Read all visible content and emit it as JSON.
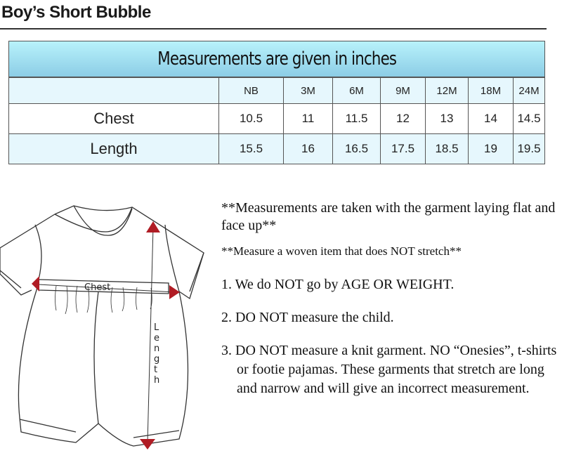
{
  "page_title": "Boy’s Short Bubble",
  "table": {
    "caption": "Measurements are given in inches",
    "sizes": [
      "NB",
      "3M",
      "6M",
      "9M",
      "12M",
      "18M",
      "24M"
    ],
    "rows": [
      {
        "label": "Chest",
        "values": [
          "10.5",
          "11",
          "11.5",
          "12",
          "13",
          "14",
          "14.5"
        ]
      },
      {
        "label": "Length",
        "values": [
          "15.5",
          "16",
          "16.5",
          "17.5",
          "18.5",
          "19",
          "19.5"
        ]
      }
    ]
  },
  "diagram": {
    "chest_label": "Chest",
    "length_label": "Length",
    "arrow_color": "#b01c24"
  },
  "notes": {
    "flat": "**Measurements are taken with the garment laying flat and face up**",
    "woven": "**Measure a woven item that does NOT stretch**",
    "rule1": "1. We do NOT go by AGE OR WEIGHT.",
    "rule2": "2. DO NOT measure the child.",
    "rule3": "3. DO NOT measure a knit garment. NO “Onesies”, t-shirts or footie pajamas. These garments that stretch are long and narrow and will give an incorrect measurement."
  }
}
